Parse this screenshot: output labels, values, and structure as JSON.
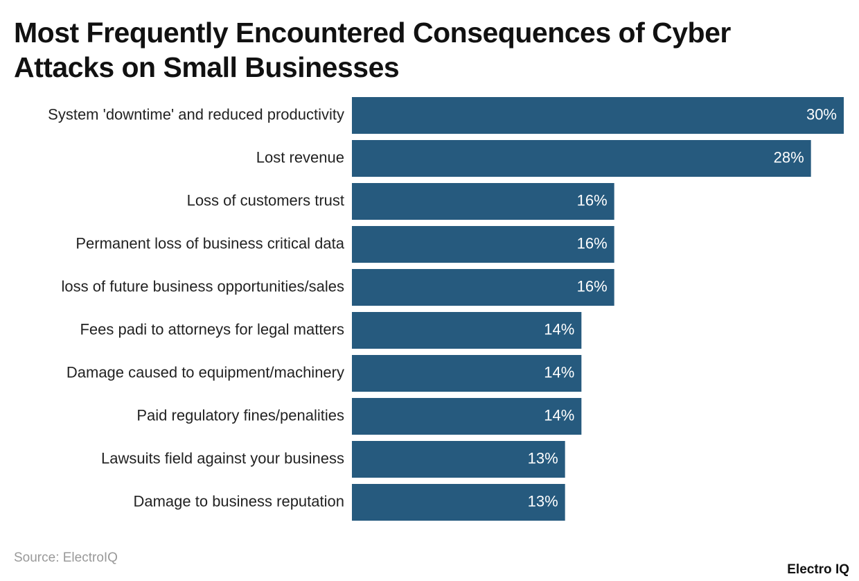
{
  "chart_data": {
    "type": "bar",
    "orientation": "horizontal",
    "title": "Most Frequently Encountered Consequences of Cyber Attacks on Small Businesses",
    "categories": [
      "System 'downtime' and reduced productivity",
      "Lost revenue",
      "Loss of customers trust",
      "Permanent loss of business critical data",
      "loss of future business opportunities/sales",
      "Fees padi to attorneys for legal matters",
      "Damage caused to equipment/machinery",
      "Paid regulatory fines/penalities",
      "Lawsuits field against your business",
      "Damage to business reputation"
    ],
    "values": [
      30,
      28,
      16,
      16,
      16,
      14,
      14,
      14,
      13,
      13
    ],
    "value_labels": [
      "30%",
      "28%",
      "16%",
      "16%",
      "16%",
      "14%",
      "14%",
      "14%",
      "13%",
      "13%"
    ],
    "color": "#265a7e",
    "source": "Source: ElectroIQ",
    "brand": "Electro IQ"
  }
}
